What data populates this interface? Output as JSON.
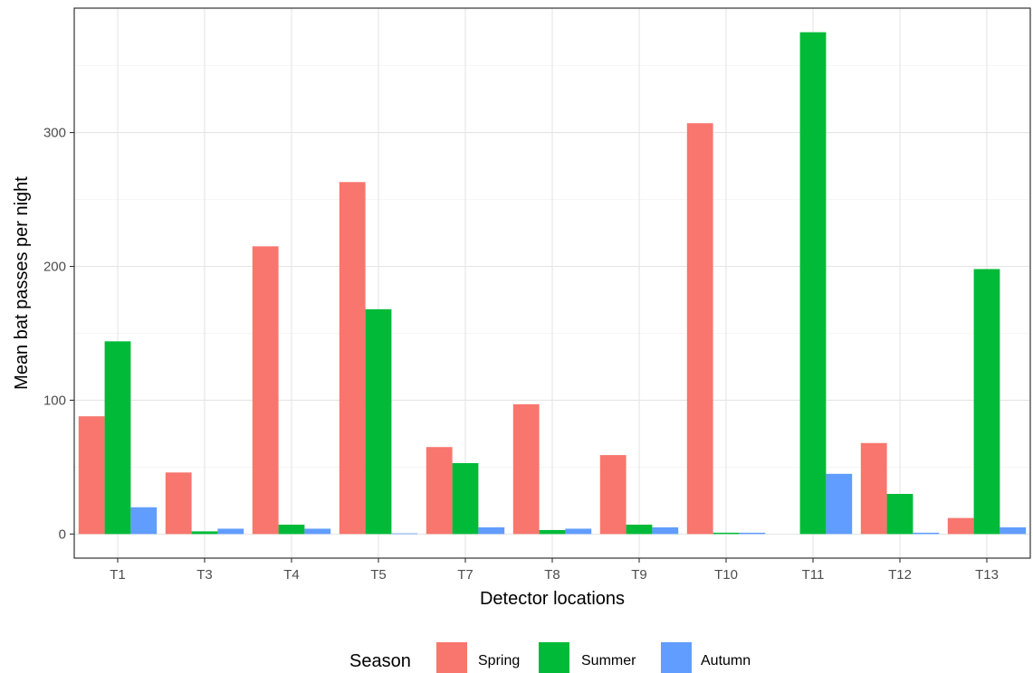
{
  "chart_data": {
    "type": "bar",
    "xlabel": "Detector locations",
    "ylabel": "Mean bat passes per night",
    "ylim": [
      -18,
      393
    ],
    "yticks": [
      0,
      100,
      200,
      300
    ],
    "categories": [
      "T1",
      "T3",
      "T4",
      "T5",
      "T7",
      "T8",
      "T9",
      "T10",
      "T11",
      "T12",
      "T13"
    ],
    "series": [
      {
        "name": "Spring",
        "color": "#F8766D",
        "values": [
          88,
          46,
          215,
          263,
          65,
          97,
          59,
          307,
          0,
          68,
          12
        ]
      },
      {
        "name": "Summer",
        "color": "#00BA38",
        "values": [
          144,
          2,
          7,
          168,
          53,
          3,
          7,
          1,
          375,
          30,
          198
        ]
      },
      {
        "name": "Autumn",
        "color": "#619CFF",
        "values": [
          20,
          4,
          4,
          0.5,
          5,
          4,
          5,
          1,
          45,
          1,
          5
        ]
      }
    ],
    "legend": {
      "title": "Season",
      "position": "bottom"
    },
    "grid": true
  }
}
